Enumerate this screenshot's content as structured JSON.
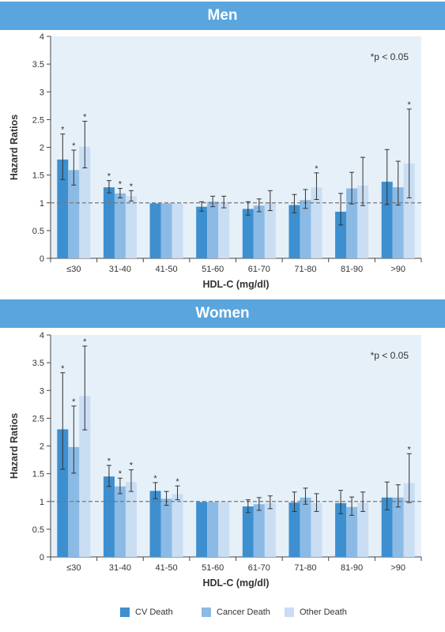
{
  "chart_data": [
    {
      "type": "bar",
      "title": "Men",
      "xlabel": "HDL-C (mg/dl)",
      "ylabel": "Hazard Ratios",
      "ylim": [
        0,
        4
      ],
      "yticks": [
        "0",
        "0.5",
        "1",
        "1.5",
        "2",
        "2.5",
        "3",
        "3.5",
        "4"
      ],
      "annotation": "*p < 0.05",
      "reference_line": 1,
      "categories": [
        "≤30",
        "31-40",
        "41-50",
        "51-60",
        "61-70",
        "71-80",
        "81-90",
        ">90"
      ],
      "series": [
        {
          "name": "CV Death",
          "values": [
            1.78,
            1.28,
            0.99,
            0.93,
            0.89,
            0.96,
            0.84,
            1.38
          ],
          "lower": [
            1.42,
            1.18,
            0.99,
            0.85,
            0.78,
            0.82,
            0.6,
            0.97
          ],
          "upper": [
            2.24,
            1.4,
            0.99,
            1.02,
            1.02,
            1.15,
            1.17,
            1.96
          ],
          "significant": [
            true,
            true,
            false,
            false,
            false,
            false,
            false,
            false
          ]
        },
        {
          "name": "Cancer Death",
          "values": [
            1.59,
            1.17,
            0.99,
            1.02,
            0.95,
            1.05,
            1.26,
            1.28
          ],
          "lower": [
            1.32,
            1.09,
            0.99,
            0.93,
            0.84,
            0.9,
            0.98,
            0.96
          ],
          "upper": [
            1.95,
            1.26,
            0.99,
            1.12,
            1.07,
            1.24,
            1.55,
            1.75
          ],
          "significant": [
            true,
            true,
            false,
            false,
            false,
            false,
            false,
            false
          ]
        },
        {
          "name": "Other Death",
          "values": [
            2.01,
            1.12,
            0.99,
            1.01,
            1.01,
            1.28,
            1.31,
            1.71
          ],
          "lower": [
            1.63,
            1.03,
            0.99,
            0.91,
            0.86,
            1.06,
            0.95,
            1.09
          ],
          "upper": [
            2.47,
            1.22,
            0.99,
            1.12,
            1.22,
            1.54,
            1.82,
            2.69
          ],
          "significant": [
            true,
            true,
            false,
            false,
            false,
            true,
            false,
            true
          ]
        }
      ]
    },
    {
      "type": "bar",
      "title": "Women",
      "xlabel": "HDL-C (mg/dl)",
      "ylabel": "Hazard Ratios",
      "ylim": [
        0,
        4
      ],
      "yticks": [
        "0",
        "0.5",
        "1",
        "1.5",
        "2",
        "2.5",
        "3",
        "3.5",
        "4"
      ],
      "annotation": "*p < 0.05",
      "reference_line": 1,
      "categories": [
        "≤30",
        "31-40",
        "41-50",
        "51-60",
        "61-70",
        "71-80",
        "81-90",
        ">90"
      ],
      "series": [
        {
          "name": "CV Death",
          "values": [
            2.3,
            1.45,
            1.19,
            0.99,
            0.91,
            0.98,
            0.97,
            1.07
          ],
          "lower": [
            1.58,
            1.27,
            1.05,
            0.99,
            0.8,
            0.82,
            0.78,
            0.85
          ],
          "upper": [
            3.32,
            1.65,
            1.34,
            0.99,
            1.03,
            1.17,
            1.2,
            1.35
          ],
          "significant": [
            true,
            true,
            true,
            false,
            false,
            false,
            false,
            false
          ]
        },
        {
          "name": "Cancer Death",
          "values": [
            1.98,
            1.27,
            1.05,
            0.99,
            0.95,
            1.07,
            0.9,
            1.07
          ],
          "lower": [
            1.51,
            1.14,
            0.93,
            0.99,
            0.84,
            0.95,
            0.75,
            0.9
          ],
          "upper": [
            2.72,
            1.42,
            1.18,
            0.99,
            1.07,
            1.24,
            1.08,
            1.3
          ],
          "significant": [
            true,
            true,
            false,
            false,
            false,
            false,
            false,
            false
          ]
        },
        {
          "name": "Other Death",
          "values": [
            2.9,
            1.35,
            1.13,
            0.99,
            0.97,
            0.97,
            0.98,
            1.33
          ],
          "lower": [
            2.29,
            1.18,
            1.03,
            0.99,
            0.87,
            0.82,
            0.82,
            0.98
          ],
          "upper": [
            3.8,
            1.57,
            1.28,
            0.99,
            1.1,
            1.14,
            1.17,
            1.86
          ],
          "significant": [
            true,
            true,
            true,
            false,
            false,
            false,
            false,
            true
          ]
        }
      ]
    }
  ],
  "legend": {
    "items": [
      {
        "label": "CV Death",
        "color": "#3d8fcf"
      },
      {
        "label": "Cancer Death",
        "color": "#8bbae5"
      },
      {
        "label": "Other Death",
        "color": "#c9ddf3"
      }
    ]
  },
  "colors": {
    "banner": "#5aa5dd",
    "plot_background": "#e6f0f9",
    "reference_line": "#777777",
    "error_bar": "#333333"
  }
}
